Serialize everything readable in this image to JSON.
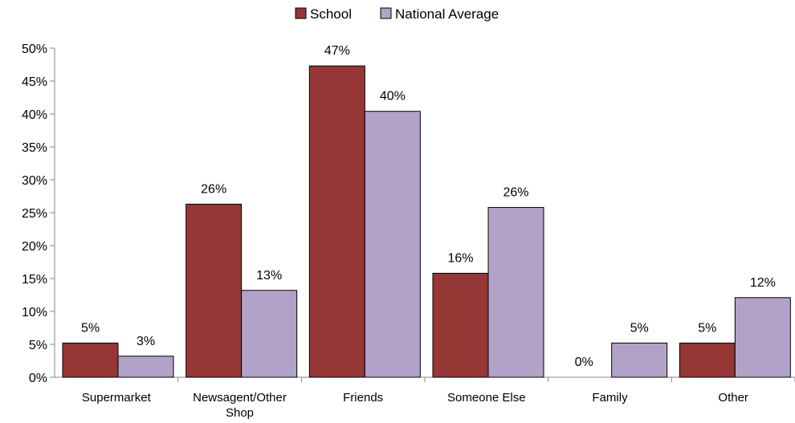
{
  "chart_data": {
    "type": "bar",
    "categories": [
      [
        "Supermarket"
      ],
      [
        "Newsagent/Other",
        "Shop"
      ],
      [
        "Friends"
      ],
      [
        "Someone Else"
      ],
      [
        "Family"
      ],
      [
        "Other"
      ]
    ],
    "series": [
      {
        "name": "School",
        "color": "#953735",
        "values": [
          5.2,
          26.3,
          47.3,
          15.8,
          0,
          5.2
        ],
        "labels": [
          "5%",
          "26%",
          "47%",
          "16%",
          "0%",
          "5%"
        ]
      },
      {
        "name": "National Average",
        "color": "#b3a2c7",
        "values": [
          3.2,
          13.2,
          40.4,
          25.8,
          5.2,
          12.1
        ],
        "labels": [
          "3%",
          "13%",
          "40%",
          "26%",
          "5%",
          "12%"
        ]
      }
    ],
    "ylim": [
      0,
      50
    ],
    "yticks": [
      0,
      5,
      10,
      15,
      20,
      25,
      30,
      35,
      40,
      45,
      50
    ],
    "ytick_labels": [
      "0%",
      "5%",
      "10%",
      "15%",
      "20%",
      "25%",
      "30%",
      "35%",
      "40%",
      "45%",
      "50%"
    ],
    "legend_position": "top-center",
    "grid": false
  }
}
